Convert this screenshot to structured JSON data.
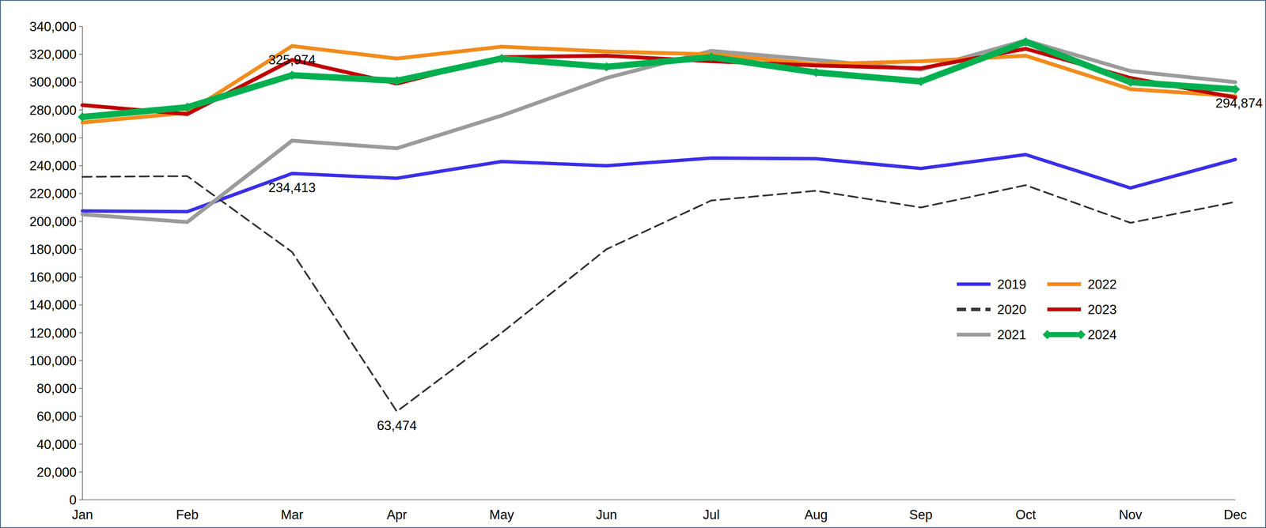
{
  "chart_data": {
    "type": "line",
    "categories": [
      "Jan",
      "Feb",
      "Mar",
      "Apr",
      "May",
      "Jun",
      "Jul",
      "Aug",
      "Sep",
      "Oct",
      "Nov",
      "Dec"
    ],
    "series": [
      {
        "name": "2019",
        "color": "#3a2fe8",
        "line_style": "solid",
        "values": [
          207500,
          207000,
          234413,
          231000,
          243000,
          240000,
          245500,
          245000,
          238000,
          248000,
          224000,
          244500
        ],
        "value_labels": [
          null,
          null,
          "234,413",
          null,
          null,
          null,
          null,
          null,
          null,
          null,
          null,
          null
        ]
      },
      {
        "name": "2020",
        "color": "#333333",
        "line_style": "dashed",
        "values": [
          232000,
          232500,
          178000,
          63474,
          120000,
          180000,
          215000,
          222000,
          210000,
          226000,
          199000,
          214000
        ],
        "value_labels": [
          null,
          null,
          null,
          "63,474",
          null,
          null,
          null,
          null,
          null,
          null,
          null,
          null
        ]
      },
      {
        "name": "2021",
        "color": "#9b9b9b",
        "line_style": "solid",
        "values": [
          205000,
          199500,
          258000,
          252500,
          276000,
          303000,
          322500,
          316000,
          309000,
          330000,
          308000,
          300000
        ]
      },
      {
        "name": "2022",
        "color": "#f28c1c",
        "line_style": "solid",
        "values": [
          271000,
          278000,
          325974,
          317000,
          325500,
          322000,
          320000,
          313000,
          315000,
          319000,
          295000,
          290000
        ],
        "value_labels": [
          null,
          null,
          "325,974",
          null,
          null,
          null,
          null,
          null,
          null,
          null,
          null,
          null
        ]
      },
      {
        "name": "2023",
        "color": "#c00000",
        "line_style": "solid",
        "values": [
          283500,
          277000,
          316000,
          299000,
          318000,
          319000,
          315000,
          312000,
          310000,
          324000,
          303000,
          289000
        ]
      },
      {
        "name": "2024",
        "color": "#00b050",
        "line_style": "solid",
        "marker": "diamond",
        "values": [
          275000,
          282000,
          305000,
          301000,
          317000,
          311000,
          318000,
          307000,
          300500,
          329000,
          300000,
          294874
        ],
        "value_labels": [
          null,
          null,
          null,
          null,
          null,
          null,
          null,
          null,
          null,
          null,
          null,
          "294,874"
        ]
      }
    ],
    "ylim": [
      0,
      340000
    ],
    "yticks": [
      0,
      {
        "value": 20000,
        "label": "20,000"
      },
      {
        "value": 40000,
        "label": "40,000"
      },
      {
        "value": 60000,
        "label": "60,000"
      },
      {
        "value": 80000,
        "label": "80,000"
      },
      {
        "value": 100000,
        "label": "100,000"
      },
      {
        "value": 120000,
        "label": "120,000"
      },
      {
        "value": 140000,
        "label": "140,000"
      },
      {
        "value": 160000,
        "label": "160,000"
      },
      {
        "value": 180000,
        "label": "180,000"
      },
      {
        "value": 200000,
        "label": "200,000"
      },
      {
        "value": 220000,
        "label": "220,000"
      },
      {
        "value": 240000,
        "label": "240,000"
      },
      {
        "value": 260000,
        "label": "260,000"
      },
      {
        "value": 280000,
        "label": "280,000"
      },
      {
        "value": 300000,
        "label": "300,000"
      },
      {
        "value": 320000,
        "label": "320,000"
      },
      {
        "value": 340000,
        "label": "340,000"
      }
    ],
    "grid": false,
    "legend": "right"
  }
}
